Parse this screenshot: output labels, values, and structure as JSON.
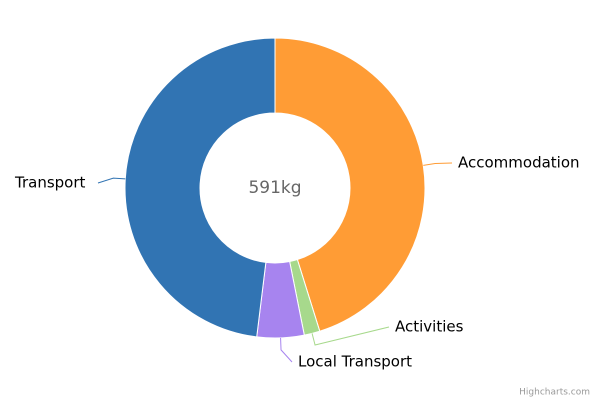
{
  "chart_data": {
    "type": "donut",
    "center_label": "591kg",
    "categories": [
      "Accommodation",
      "Activities",
      "Local Transport",
      "Transport"
    ],
    "values": [
      267,
      10,
      30,
      284
    ],
    "colors": [
      "#ff9c35",
      "#a7d98c",
      "#a784ef",
      "#3174b3"
    ],
    "credits": "Highcharts.com"
  }
}
